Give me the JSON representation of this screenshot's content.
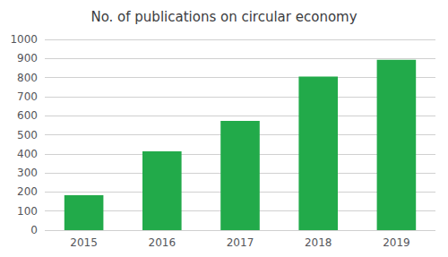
{
  "chart_data": {
    "type": "bar",
    "title": "No. of publications on circular economy",
    "categories": [
      "2015",
      "2016",
      "2017",
      "2018",
      "2019"
    ],
    "values": [
      183,
      413,
      573,
      805,
      893
    ],
    "color": "#22aa4a",
    "ylim": [
      0,
      1000
    ],
    "yticks": [
      0,
      100,
      200,
      300,
      400,
      500,
      600,
      700,
      800,
      900,
      1000
    ],
    "grid": true
  }
}
